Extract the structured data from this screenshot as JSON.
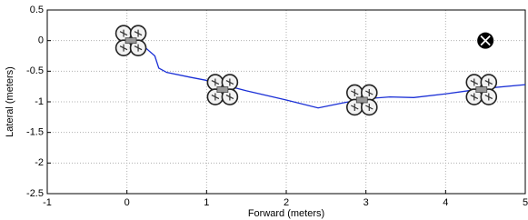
{
  "chart_data": {
    "type": "line",
    "xlabel": "Forward (meters)",
    "ylabel": "Lateral (meters)",
    "xlim": [
      -1,
      5
    ],
    "ylim": [
      -2.5,
      0.5
    ],
    "xticks": [
      -1,
      0,
      1,
      2,
      3,
      4,
      5
    ],
    "yticks": [
      -2.5,
      -2,
      -1.5,
      -1,
      -0.5,
      0,
      0.5
    ],
    "grid": true,
    "series": [
      {
        "color": "#1a2fd6",
        "x": [
          0,
          0.2,
          0.35,
          0.4,
          0.5,
          0.8,
          1.0,
          1.5,
          2.0,
          2.4,
          2.7,
          3.0,
          3.3,
          3.6,
          4.0,
          4.5,
          5.0
        ],
        "values": [
          0,
          -0.08,
          -0.25,
          -0.45,
          -0.52,
          -0.6,
          -0.65,
          -0.82,
          -0.97,
          -1.1,
          -1.02,
          -0.95,
          -0.92,
          -0.93,
          -0.87,
          -0.78,
          -0.72
        ]
      }
    ],
    "vehicles": {
      "x": [
        0.05,
        1.2,
        2.95,
        4.45
      ],
      "y": [
        0,
        -0.8,
        -0.97,
        -0.8
      ]
    },
    "target": {
      "x": 4.5,
      "y": 0
    }
  }
}
